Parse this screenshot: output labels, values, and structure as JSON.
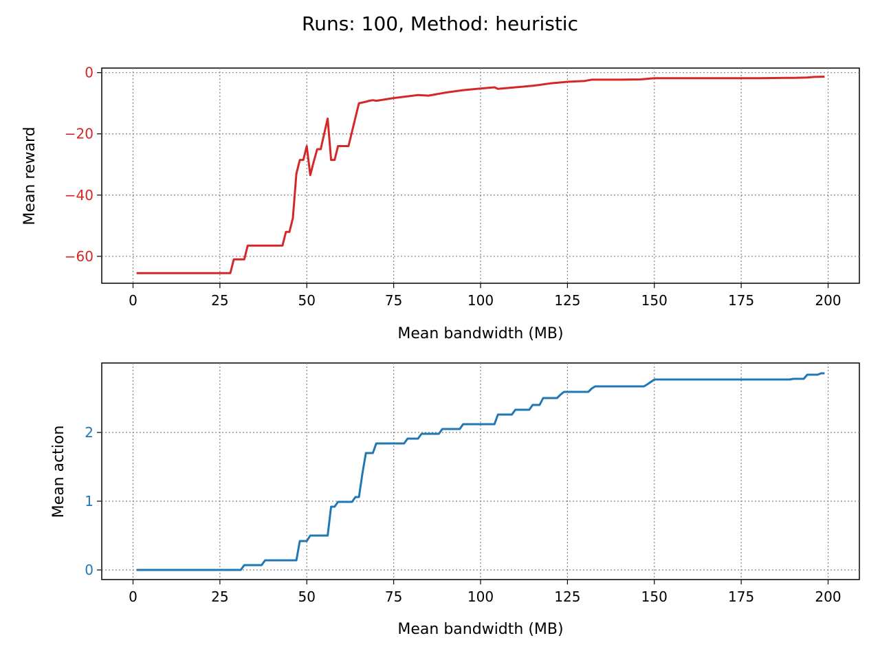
{
  "figure": {
    "title": "Runs: 100, Method: heuristic"
  },
  "chart_data": [
    {
      "type": "line",
      "xlabel": "Mean bandwidth (MB)",
      "ylabel": "Mean reward",
      "xlim": [
        -9,
        209
      ],
      "ylim": [
        -68.8,
        1.5
      ],
      "xticks": [
        0,
        25,
        50,
        75,
        100,
        125,
        150,
        175,
        200
      ],
      "xtick_labels": [
        "0",
        "25",
        "50",
        "75",
        "100",
        "125",
        "150",
        "175",
        "200"
      ],
      "yticks": [
        -60,
        -40,
        -20,
        0
      ],
      "ytick_labels": [
        "−60",
        "−40",
        "−20",
        "0"
      ],
      "grid": true,
      "color": "#d62728",
      "series": [
        {
          "x": [
            1,
            28,
            29,
            30,
            32,
            33,
            34,
            36,
            40,
            43,
            44,
            45,
            46,
            47,
            48,
            49,
            50,
            51,
            52,
            53,
            54,
            55,
            56,
            57,
            58,
            59,
            60,
            62,
            65,
            67,
            68,
            69,
            70,
            75,
            80,
            82,
            85,
            90,
            95,
            100,
            104,
            105,
            110,
            115,
            117,
            120,
            122,
            125,
            130,
            132,
            140,
            146,
            148,
            150,
            160,
            170,
            180,
            190,
            194,
            196,
            199
          ],
          "y": [
            -65.5,
            -65.5,
            -61,
            -61,
            -61,
            -56.5,
            -56.5,
            -56.5,
            -56.5,
            -56.5,
            -52,
            -52,
            -47.5,
            -33,
            -28.5,
            -28.5,
            -24,
            -33.5,
            -29,
            -25,
            -25,
            -20,
            -15,
            -28.5,
            -28.5,
            -24,
            -24,
            -24,
            -10,
            -9.5,
            -9.2,
            -9,
            -9.2,
            -8.3,
            -7.6,
            -7.3,
            -7.5,
            -6.5,
            -5.7,
            -5.2,
            -4.8,
            -5.3,
            -4.8,
            -4.3,
            -4,
            -3.5,
            -3.3,
            -3,
            -2.7,
            -2.3,
            -2.3,
            -2.2,
            -2,
            -1.8,
            -1.8,
            -1.8,
            -1.8,
            -1.7,
            -1.6,
            -1.4,
            -1.3
          ]
        }
      ]
    },
    {
      "type": "line",
      "xlabel": "Mean bandwidth (MB)",
      "ylabel": "Mean action",
      "xlim": [
        -9,
        209
      ],
      "ylim": [
        -0.14,
        3.01
      ],
      "xticks": [
        0,
        25,
        50,
        75,
        100,
        125,
        150,
        175,
        200
      ],
      "xtick_labels": [
        "0",
        "25",
        "50",
        "75",
        "100",
        "125",
        "150",
        "175",
        "200"
      ],
      "yticks": [
        0,
        1,
        2
      ],
      "ytick_labels": [
        "0",
        "1",
        "2"
      ],
      "grid": true,
      "color": "#1f77b4",
      "series": [
        {
          "x": [
            1,
            31,
            32,
            37,
            38,
            47,
            48,
            50,
            51,
            56,
            57,
            58,
            59,
            63,
            64,
            65,
            66,
            67,
            69,
            70,
            78,
            79,
            82,
            83,
            88,
            89,
            94,
            95,
            104,
            105,
            109,
            110,
            114,
            115,
            117,
            118,
            122,
            123,
            124,
            126,
            131,
            132,
            133,
            147,
            148,
            150,
            160,
            189,
            190,
            193,
            194,
            197,
            198,
            199
          ],
          "y": [
            0,
            0,
            0.07,
            0.07,
            0.14,
            0.14,
            0.42,
            0.42,
            0.5,
            0.5,
            0.92,
            0.92,
            0.99,
            0.99,
            1.06,
            1.06,
            1.4,
            1.7,
            1.7,
            1.84,
            1.84,
            1.91,
            1.91,
            1.98,
            1.98,
            2.05,
            2.05,
            2.12,
            2.12,
            2.26,
            2.26,
            2.33,
            2.33,
            2.4,
            2.4,
            2.5,
            2.5,
            2.55,
            2.59,
            2.59,
            2.59,
            2.64,
            2.67,
            2.67,
            2.7,
            2.77,
            2.77,
            2.77,
            2.78,
            2.78,
            2.84,
            2.84,
            2.86,
            2.86
          ]
        }
      ]
    }
  ]
}
